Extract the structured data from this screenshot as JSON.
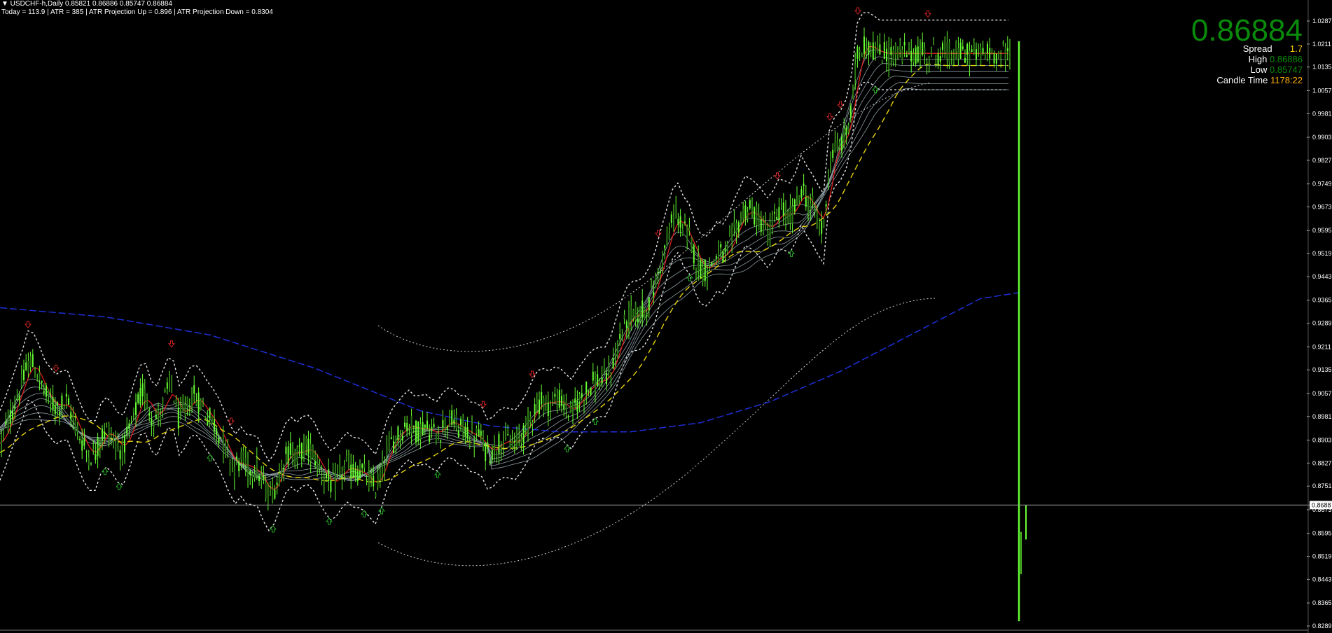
{
  "header": {
    "line1": "▼ USDCHF-h,Daily  0.85821 0.86886 0.85747 0.86884",
    "line2": "Today = 113.9   |   ATR = 385   |   ATR Projection Up = 0.896   |   ATR Projection Down = 0.8304"
  },
  "info_panel": {
    "price": "0.86884",
    "spread_label": "Spread",
    "spread_value": "1.7",
    "high_label": "High",
    "high_value": "0.86886",
    "low_label": "Low",
    "low_value": "0.85747",
    "candle_time_label": "Candle Time",
    "candle_time_value": "1178:22"
  },
  "colors": {
    "background": "#000000",
    "candle_up": "#66ff33",
    "candle_down": "#2c7a16",
    "ma_blue": "#1e2fd8",
    "ma_yellow": "#e8d40a",
    "ma_red": "#d81e1e",
    "ribbon": "#8a9aa0",
    "band_dotted": "#cfcfcf",
    "signal_up": "#22aa22",
    "signal_down": "#cc2222"
  },
  "chart_data": {
    "type": "candlestick",
    "symbol": "USDCHF-h",
    "timeframe": "Daily",
    "y_ticks": [
      "1.0287",
      "1.0211",
      "1.0135",
      "1.0057",
      "0.9981",
      "0.9903",
      "0.9827",
      "0.9749",
      "0.9673",
      "0.9595",
      "0.9519",
      "0.9443",
      "0.9365",
      "0.9289",
      "0.9211",
      "0.9135",
      "0.9057",
      "0.8981",
      "0.8903",
      "0.8827",
      "0.8751",
      "0.8673",
      "0.8595",
      "0.8519",
      "0.8443",
      "0.8365",
      "0.8289"
    ],
    "ylim": [
      0.8289,
      1.0287
    ],
    "current_price": "0.8688",
    "current_price_value": 0.86884,
    "price_path": [
      [
        0,
        0.889
      ],
      [
        12,
        0.896
      ],
      [
        22,
        0.903
      ],
      [
        32,
        0.909
      ],
      [
        42,
        0.917
      ],
      [
        52,
        0.913
      ],
      [
        65,
        0.905
      ],
      [
        80,
        0.901
      ],
      [
        95,
        0.903
      ],
      [
        105,
        0.897
      ],
      [
        115,
        0.891
      ],
      [
        125,
        0.886
      ],
      [
        135,
        0.885
      ],
      [
        145,
        0.892
      ],
      [
        155,
        0.894
      ],
      [
        165,
        0.889
      ],
      [
        175,
        0.887
      ],
      [
        185,
        0.893
      ],
      [
        195,
        0.901
      ],
      [
        205,
        0.907
      ],
      [
        215,
        0.899
      ],
      [
        225,
        0.897
      ],
      [
        235,
        0.904
      ],
      [
        245,
        0.909
      ],
      [
        255,
        0.897
      ],
      [
        265,
        0.9
      ],
      [
        275,
        0.905
      ],
      [
        285,
        0.903
      ],
      [
        295,
        0.899
      ],
      [
        305,
        0.896
      ],
      [
        315,
        0.892
      ],
      [
        325,
        0.886
      ],
      [
        335,
        0.881
      ],
      [
        345,
        0.884
      ],
      [
        355,
        0.88
      ],
      [
        365,
        0.882
      ],
      [
        375,
        0.876
      ],
      [
        385,
        0.872
      ],
      [
        395,
        0.876
      ],
      [
        405,
        0.884
      ],
      [
        415,
        0.887
      ],
      [
        425,
        0.885
      ],
      [
        435,
        0.888
      ],
      [
        445,
        0.887
      ],
      [
        455,
        0.882
      ],
      [
        465,
        0.878
      ],
      [
        475,
        0.875
      ],
      [
        485,
        0.879
      ],
      [
        495,
        0.882
      ],
      [
        505,
        0.88
      ],
      [
        515,
        0.88
      ],
      [
        525,
        0.878
      ],
      [
        535,
        0.874
      ],
      [
        545,
        0.88
      ],
      [
        555,
        0.888
      ],
      [
        565,
        0.891
      ],
      [
        575,
        0.894
      ],
      [
        585,
        0.896
      ],
      [
        595,
        0.893
      ],
      [
        605,
        0.895
      ],
      [
        615,
        0.893
      ],
      [
        625,
        0.892
      ],
      [
        635,
        0.896
      ],
      [
        645,
        0.897
      ],
      [
        655,
        0.894
      ],
      [
        665,
        0.894
      ],
      [
        675,
        0.891
      ],
      [
        685,
        0.892
      ],
      [
        695,
        0.886
      ],
      [
        705,
        0.887
      ],
      [
        715,
        0.89
      ],
      [
        725,
        0.89
      ],
      [
        735,
        0.889
      ],
      [
        745,
        0.892
      ],
      [
        755,
        0.896
      ],
      [
        765,
        0.902
      ],
      [
        775,
        0.903
      ],
      [
        785,
        0.902
      ],
      [
        795,
        0.904
      ],
      [
        805,
        0.902
      ],
      [
        815,
        0.899
      ],
      [
        825,
        0.903
      ],
      [
        835,
        0.906
      ],
      [
        845,
        0.909
      ],
      [
        855,
        0.91
      ],
      [
        865,
        0.91
      ],
      [
        875,
        0.915
      ],
      [
        885,
        0.924
      ],
      [
        895,
        0.93
      ],
      [
        905,
        0.932
      ],
      [
        915,
        0.932
      ],
      [
        925,
        0.935
      ],
      [
        935,
        0.941
      ],
      [
        945,
        0.95
      ],
      [
        955,
        0.958
      ],
      [
        965,
        0.966
      ],
      [
        975,
        0.96
      ],
      [
        985,
        0.957
      ],
      [
        995,
        0.949
      ],
      [
        1005,
        0.946
      ],
      [
        1015,
        0.948
      ],
      [
        1025,
        0.952
      ],
      [
        1035,
        0.95
      ],
      [
        1045,
        0.957
      ],
      [
        1055,
        0.962
      ],
      [
        1065,
        0.967
      ],
      [
        1075,
        0.965
      ],
      [
        1085,
        0.963
      ],
      [
        1095,
        0.959
      ],
      [
        1105,
        0.962
      ],
      [
        1115,
        0.967
      ],
      [
        1125,
        0.963
      ],
      [
        1135,
        0.967
      ],
      [
        1145,
        0.974
      ],
      [
        1155,
        0.968
      ],
      [
        1165,
        0.966
      ],
      [
        1175,
        0.958
      ],
      [
        1185,
        0.984
      ],
      [
        1195,
        0.987
      ],
      [
        1205,
        0.989
      ],
      [
        1215,
        0.998
      ],
      [
        1225,
        1.019
      ],
      [
        1235,
        1.021
      ],
      [
        1245,
        1.02
      ],
      [
        1255,
        1.018
      ]
    ],
    "last_candle": {
      "open": 0.85821,
      "high": 0.86886,
      "low": 0.85747,
      "close": 0.86884
    },
    "grid": false,
    "legend": "none"
  }
}
